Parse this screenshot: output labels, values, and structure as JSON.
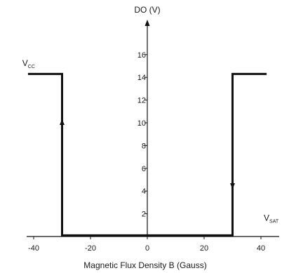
{
  "chart_data": {
    "type": "line",
    "title": "",
    "xlabel": "Magnetic Flux Density B (Gauss)",
    "ylabel": "DO (V)",
    "xlim": [
      -40,
      40
    ],
    "ylim": [
      0,
      16
    ],
    "x_ticks": [
      "-40",
      "-20",
      "0",
      "20",
      "40"
    ],
    "x_tick_values": [
      -40,
      -20,
      0,
      20,
      40
    ],
    "y_ticks": [
      "2",
      "4",
      "6",
      "8",
      "10",
      "12",
      "14",
      "16"
    ],
    "y_tick_values": [
      2,
      4,
      6,
      8,
      10,
      12,
      14,
      16
    ],
    "grid": false,
    "legend": "none",
    "series": [
      {
        "x": [
          -42,
          -30,
          -30,
          30,
          30,
          42
        ],
        "y": [
          14.3,
          14.3,
          0.1,
          0.1,
          14.3,
          14.3
        ]
      }
    ],
    "direction_arrows": [
      {
        "x": -30,
        "y": 10,
        "dir": "up"
      },
      {
        "x": 30,
        "y": 4.5,
        "dir": "down"
      }
    ],
    "annotations": [
      {
        "main": "V",
        "sub": "CC",
        "x": -44,
        "y": 15
      },
      {
        "main": "V",
        "sub": "SAT",
        "x": 41,
        "y": 1.4
      }
    ],
    "colors": {
      "line": "#111111",
      "axis": "#111111",
      "text": "#1a1a1a"
    }
  }
}
